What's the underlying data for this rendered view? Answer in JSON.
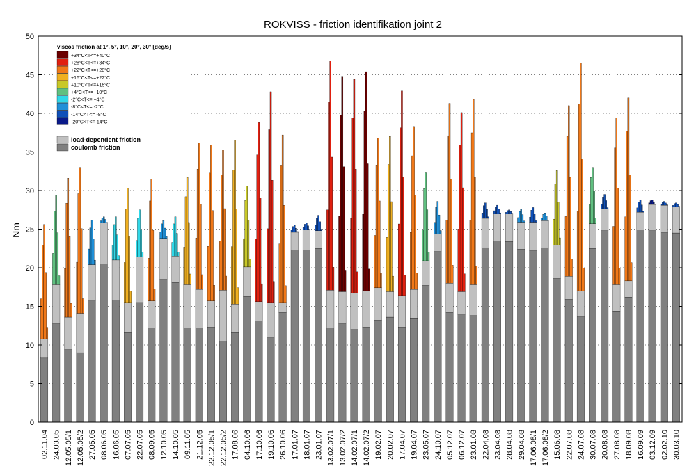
{
  "chart_data": {
    "type": "bar",
    "title": "ROKVISS - friction identifikation joint 2",
    "ylabel": "Nm",
    "xlabel": "",
    "ylim": [
      0,
      50
    ],
    "yticks": [
      0,
      5,
      10,
      15,
      20,
      25,
      30,
      35,
      40,
      45,
      50
    ],
    "grid": "dotted",
    "legend": {
      "placement": "top-left",
      "title": "viscos friction at 1°, 5°, 10°, 20°, 30° [deg/s]",
      "temperature_classes": [
        {
          "label": "+34°C<T<=+40°C",
          "color": "#6b0000"
        },
        {
          "label": "+28°C<T<=+34°C",
          "color": "#e02010"
        },
        {
          "label": "+22°C<T<=+28°C",
          "color": "#f07818"
        },
        {
          "label": "+16°C<T<=+22°C",
          "color": "#f0b020"
        },
        {
          "label": "+10°C<T<=+16°C",
          "color": "#c8c828"
        },
        {
          "label": "+4°C<T<=+10°C",
          "color": "#60c080"
        },
        {
          "label": "-2°C<T<= +4°C",
          "color": "#30d8e8"
        },
        {
          "label": "-8°C<T<= -2°C",
          "color": "#2090d8"
        },
        {
          "label": "-14°C<T<= -8°C",
          "color": "#1050b8"
        },
        {
          "label": "-20°C<T<=-14°C",
          "color": "#0a1a8a"
        }
      ],
      "friction_types": [
        {
          "label": "load-dependent friction",
          "color": "#c0c0c0"
        },
        {
          "label": "coulomb friction",
          "color": "#808080"
        }
      ]
    },
    "categories": [
      "02.11.04",
      "24.03.05",
      "12.05.05/1",
      "12.05.05/2",
      "27.05.05",
      "08.06.05",
      "16.06.05",
      "07.07.05",
      "22.07.05",
      "08.09.05",
      "12.10.05",
      "14.10.05",
      "09.11.05",
      "21.12.05",
      "22.12.05/1",
      "22.12.05/2",
      "17.08.06",
      "04.10.06",
      "17.10.06",
      "19.10.06",
      "26.10.06",
      "17.01.07",
      "18.01.07",
      "23.01.07",
      "13.02.07/1",
      "13.02.07/2",
      "14.02.07/1",
      "14.02.07/2",
      "19.02.07",
      "20.02.07",
      "17.04.07",
      "19.04.07",
      "23.05.07",
      "24.10.07",
      "05.12.07",
      "06.12.07",
      "23.01.08",
      "22.04.08",
      "23.04.08",
      "28.04.08",
      "29.04.08",
      "17.06.08/1",
      "17.06.08/2",
      "15.06.08",
      "22.07.08",
      "24.07.08",
      "30.07.08",
      "20.08.08",
      "27.08.08",
      "18.09.08",
      "16.09.09",
      "03.12.09",
      "02.02.10",
      "30.03.10"
    ],
    "coulomb_friction": [
      8.3,
      12.8,
      9.4,
      9.0,
      15.7,
      20.5,
      15.8,
      11.6,
      15.5,
      12.2,
      18.5,
      18.1,
      12.2,
      12.2,
      12.3,
      10.5,
      11.6,
      16.3,
      13.1,
      11.0,
      14.2,
      22.3,
      22.3,
      22.5,
      12.2,
      12.8,
      12.0,
      12.3,
      13.2,
      13.6,
      12.3,
      13.5,
      17.7,
      22.1,
      14.2,
      13.9,
      13.8,
      22.6,
      23.5,
      23.4,
      22.4,
      22.2,
      22.6,
      18.6,
      15.9,
      13.7,
      22.5,
      24.8,
      14.4,
      16.2,
      24.9,
      24.8,
      24.6,
      24.5
    ],
    "load_dependent_friction": [
      2.5,
      5.0,
      4.2,
      5.1,
      4.7,
      5.3,
      5.2,
      3.9,
      5.9,
      3.5,
      5.3,
      3.4,
      5.6,
      5.0,
      3.4,
      6.6,
      3.7,
      3.8,
      2.5,
      4.5,
      1.3,
      2.3,
      2.6,
      2.3,
      4.9,
      4.1,
      4.7,
      4.7,
      4.2,
      3.3,
      4.1,
      3.7,
      3.2,
      2.3,
      3.8,
      3.0,
      4.0,
      3.8,
      3.5,
      3.6,
      3.5,
      3.7,
      3.5,
      4.3,
      3.0,
      3.3,
      3.2,
      2.8,
      3.4,
      2.1,
      2.3,
      3.4,
      3.5,
      3.4
    ],
    "viscous_friction_max": [
      25.6,
      29.4,
      31.6,
      33.0,
      26.2,
      26.6,
      26.6,
      30.3,
      27.5,
      31.5,
      26.1,
      26.6,
      31.7,
      36.2,
      35.9,
      35.3,
      36.5,
      30.6,
      38.8,
      42.8,
      37.2,
      25.5,
      25.8,
      26.8,
      46.8,
      44.8,
      44.4,
      45.4,
      36.8,
      37.0,
      42.9,
      38.3,
      32.3,
      28.6,
      41.3,
      40.1,
      41.8,
      28.4,
      28.1,
      27.5,
      27.6,
      27.8,
      27.1,
      32.6,
      41.0,
      46.5,
      33.0,
      29.5,
      39.4,
      42.0,
      28.8,
      28.8,
      28.6,
      28.4
    ],
    "temperature_class": [
      "+22°C<T<=+28°C",
      "+4°C<T<=+10°C",
      "+22°C<T<=+28°C",
      "+22°C<T<=+28°C",
      "-8°C<T<= -2°C",
      "-8°C<T<= -2°C",
      "-2°C<T<= +4°C",
      "+16°C<T<=+22°C",
      "-2°C<T<= +4°C",
      "+22°C<T<=+28°C",
      "-8°C<T<= -2°C",
      "-2°C<T<= +4°C",
      "+16°C<T<=+22°C",
      "+22°C<T<=+28°C",
      "+22°C<T<=+28°C",
      "+22°C<T<=+28°C",
      "+16°C<T<=+22°C",
      "+10°C<T<=+16°C",
      "+28°C<T<=+34°C",
      "+28°C<T<=+34°C",
      "+22°C<T<=+28°C",
      "-14°C<T<= -8°C",
      "-14°C<T<= -8°C",
      "-14°C<T<= -8°C",
      "+28°C<T<=+34°C",
      "+34°C<T<=+40°C",
      "+28°C<T<=+34°C",
      "+34°C<T<=+40°C",
      "+22°C<T<=+28°C",
      "+16°C<T<=+22°C",
      "+28°C<T<=+34°C",
      "+22°C<T<=+28°C",
      "+4°C<T<=+10°C",
      "-8°C<T<= -2°C",
      "+22°C<T<=+28°C",
      "+28°C<T<=+34°C",
      "+22°C<T<=+28°C",
      "-14°C<T<= -8°C",
      "-14°C<T<= -8°C",
      "-14°C<T<= -8°C",
      "-8°C<T<= -2°C",
      "-14°C<T<= -8°C",
      "-8°C<T<= -2°C",
      "+10°C<T<=+16°C",
      "+22°C<T<=+28°C",
      "+22°C<T<=+28°C",
      "+4°C<T<=+10°C",
      "-14°C<T<= -8°C",
      "+22°C<T<=+28°C",
      "+22°C<T<=+28°C",
      "-14°C<T<= -8°C",
      "-20°C<T<=-14°C",
      "-14°C<T<= -8°C",
      "-14°C<T<= -8°C"
    ]
  }
}
